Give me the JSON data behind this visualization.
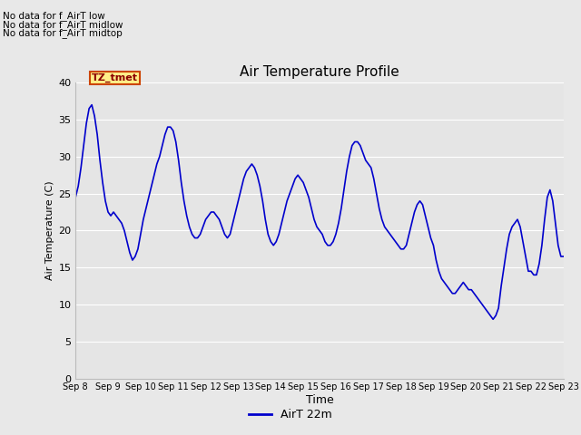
{
  "title": "Air Temperature Profile",
  "xlabel": "Time",
  "ylabel": "Air Temperature (C)",
  "legend_label": "AirT 22m",
  "legend_outside_text": [
    "No data for f_AirT low",
    "No data for f_AirT midlow",
    "No data for f_AirT midtop"
  ],
  "annotation_box": "TZ_tmet",
  "xlim_start": 0,
  "xlim_end": 15.0,
  "ylim": [
    0,
    40
  ],
  "yticks": [
    0,
    5,
    10,
    15,
    20,
    25,
    30,
    35,
    40
  ],
  "x_tick_positions": [
    0,
    1,
    2,
    3,
    4,
    5,
    6,
    7,
    8,
    9,
    10,
    11,
    12,
    13,
    14,
    15
  ],
  "x_labels": [
    "Sep 8",
    "Sep 9",
    "Sep 10",
    "Sep 11",
    "Sep 12",
    "Sep 13",
    "Sep 14",
    "Sep 15",
    "Sep 16",
    "Sep 17",
    "Sep 18",
    "Sep 19",
    "Sep 20",
    "Sep 21",
    "Sep 22",
    "Sep 23"
  ],
  "line_color": "#0000cc",
  "line_width": 1.2,
  "bg_color": "#e8e8e8",
  "plot_bg_color": "#e5e5e5",
  "grid_color": "#ffffff",
  "time_values": [
    0.0,
    0.083,
    0.167,
    0.25,
    0.333,
    0.417,
    0.5,
    0.583,
    0.667,
    0.75,
    0.833,
    0.917,
    1.0,
    1.083,
    1.167,
    1.25,
    1.333,
    1.417,
    1.5,
    1.583,
    1.667,
    1.75,
    1.833,
    1.917,
    2.0,
    2.083,
    2.167,
    2.25,
    2.333,
    2.417,
    2.5,
    2.583,
    2.667,
    2.75,
    2.833,
    2.917,
    3.0,
    3.083,
    3.167,
    3.25,
    3.333,
    3.417,
    3.5,
    3.583,
    3.667,
    3.75,
    3.833,
    3.917,
    4.0,
    4.083,
    4.167,
    4.25,
    4.333,
    4.417,
    4.5,
    4.583,
    4.667,
    4.75,
    4.833,
    4.917,
    5.0,
    5.083,
    5.167,
    5.25,
    5.333,
    5.417,
    5.5,
    5.583,
    5.667,
    5.75,
    5.833,
    5.917,
    6.0,
    6.083,
    6.167,
    6.25,
    6.333,
    6.417,
    6.5,
    6.583,
    6.667,
    6.75,
    6.833,
    6.917,
    7.0,
    7.083,
    7.167,
    7.25,
    7.333,
    7.417,
    7.5,
    7.583,
    7.667,
    7.75,
    7.833,
    7.917,
    8.0,
    8.083,
    8.167,
    8.25,
    8.333,
    8.417,
    8.5,
    8.583,
    8.667,
    8.75,
    8.833,
    8.917,
    9.0,
    9.083,
    9.167,
    9.25,
    9.333,
    9.417,
    9.5,
    9.583,
    9.667,
    9.75,
    9.833,
    9.917,
    10.0,
    10.083,
    10.167,
    10.25,
    10.333,
    10.417,
    10.5,
    10.583,
    10.667,
    10.75,
    10.833,
    10.917,
    11.0,
    11.083,
    11.167,
    11.25,
    11.333,
    11.417,
    11.5,
    11.583,
    11.667,
    11.75,
    11.833,
    11.917,
    12.0,
    12.083,
    12.167,
    12.25,
    12.333,
    12.417,
    12.5,
    12.583,
    12.667,
    12.75,
    12.833,
    12.917,
    13.0,
    13.083,
    13.167,
    13.25,
    13.333,
    13.417,
    13.5,
    13.583,
    13.667,
    13.75,
    13.833,
    13.917,
    14.0,
    14.083,
    14.167,
    14.25,
    14.333,
    14.417,
    14.5,
    14.583,
    14.667,
    14.75,
    14.833,
    14.917,
    15.0
  ],
  "temp_values": [
    24.5,
    26.0,
    28.5,
    31.5,
    34.5,
    36.5,
    37.0,
    35.5,
    33.0,
    29.5,
    26.5,
    24.0,
    22.5,
    22.0,
    22.5,
    22.0,
    21.5,
    21.0,
    20.0,
    18.5,
    17.0,
    16.0,
    16.5,
    17.5,
    19.5,
    21.5,
    23.0,
    24.5,
    26.0,
    27.5,
    29.0,
    30.0,
    31.5,
    33.0,
    34.0,
    34.0,
    33.5,
    32.0,
    29.5,
    26.5,
    24.0,
    22.0,
    20.5,
    19.5,
    19.0,
    19.0,
    19.5,
    20.5,
    21.5,
    22.0,
    22.5,
    22.5,
    22.0,
    21.5,
    20.5,
    19.5,
    19.0,
    19.5,
    21.0,
    22.5,
    24.0,
    25.5,
    27.0,
    28.0,
    28.5,
    29.0,
    28.5,
    27.5,
    26.0,
    24.0,
    21.5,
    19.5,
    18.5,
    18.0,
    18.5,
    19.5,
    21.0,
    22.5,
    24.0,
    25.0,
    26.0,
    27.0,
    27.5,
    27.0,
    26.5,
    25.5,
    24.5,
    23.0,
    21.5,
    20.5,
    20.0,
    19.5,
    18.5,
    18.0,
    18.0,
    18.5,
    19.5,
    21.0,
    23.0,
    25.5,
    28.0,
    30.0,
    31.5,
    32.0,
    32.0,
    31.5,
    30.5,
    29.5,
    29.0,
    28.5,
    27.0,
    25.0,
    23.0,
    21.5,
    20.5,
    20.0,
    19.5,
    19.0,
    18.5,
    18.0,
    17.5,
    17.5,
    18.0,
    19.5,
    21.0,
    22.5,
    23.5,
    24.0,
    23.5,
    22.0,
    20.5,
    19.0,
    18.0,
    16.0,
    14.5,
    13.5,
    13.0,
    12.5,
    12.0,
    11.5,
    11.5,
    12.0,
    12.5,
    13.0,
    12.5,
    12.0,
    12.0,
    11.5,
    11.0,
    10.5,
    10.0,
    9.5,
    9.0,
    8.5,
    8.0,
    8.5,
    9.5,
    12.5,
    15.0,
    17.5,
    19.5,
    20.5,
    21.0,
    21.5,
    20.5,
    18.5,
    16.5,
    14.5,
    14.5,
    14.0,
    14.0,
    15.5,
    18.0,
    21.5,
    24.5,
    25.5,
    24.0,
    21.0,
    18.0,
    16.5,
    16.5
  ]
}
